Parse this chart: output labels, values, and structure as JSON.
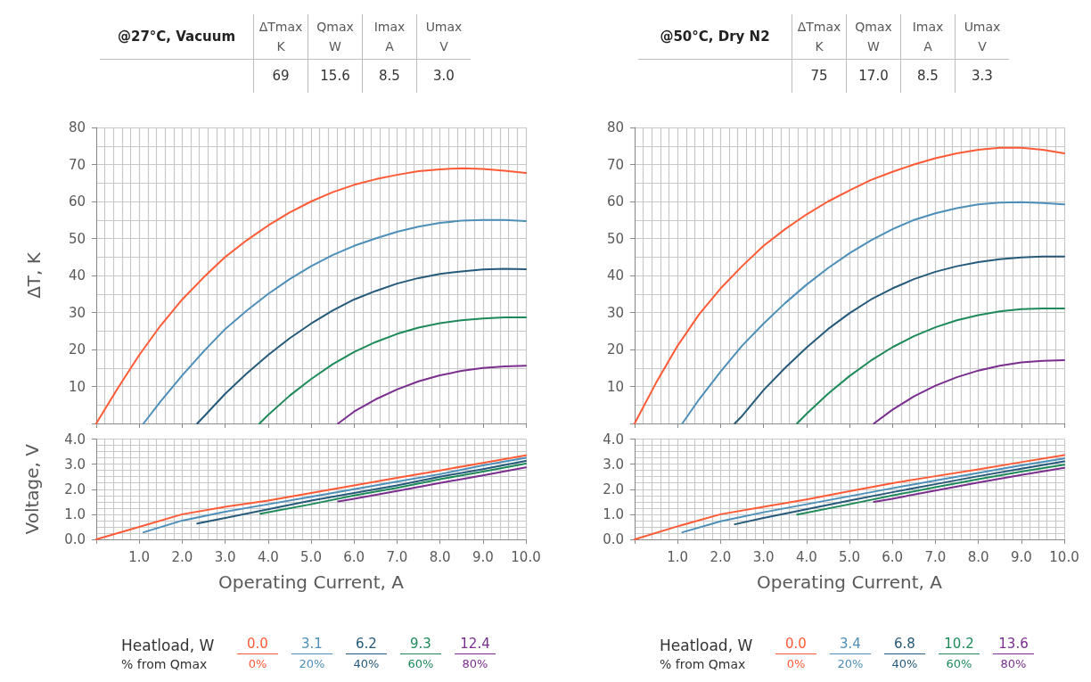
{
  "chart_data": [
    {
      "type": "other",
      "title": "@27°C, Vacuum",
      "categories": [
        "ΔTmax\nK",
        "Qmax\nW",
        "Imax\nA",
        "Umax\nV"
      ],
      "values": [
        69,
        15.6,
        8.5,
        3.0
      ],
      "value_labels": [
        "69",
        "15.6",
        "8.5",
        "3.0"
      ]
    },
    {
      "type": "line",
      "ylabel": "ΔT, K",
      "xlim": [
        0,
        10
      ],
      "xticks": [
        0,
        1,
        2,
        3,
        4,
        5,
        6,
        7,
        8,
        9,
        10
      ],
      "ylim": [
        0,
        80
      ],
      "yticks": [
        {
          "value": 0,
          "label": null
        },
        10,
        20,
        30,
        40,
        50,
        60,
        70,
        80
      ],
      "tick_labels": "y",
      "grid": true,
      "marker": "none",
      "series": [
        {
          "color": "#ff5a36",
          "x": [
            0,
            0.5,
            1,
            1.5,
            2,
            2.5,
            3,
            3.5,
            4,
            4.5,
            5,
            5.5,
            6,
            6.5,
            7,
            7.5,
            8,
            8.5,
            9,
            9.5,
            10
          ],
          "values": [
            0,
            9.5,
            18.5,
            26.5,
            33.5,
            39.5,
            45,
            49.5,
            53.5,
            57,
            60,
            62.5,
            64.5,
            66,
            67.2,
            68.2,
            68.7,
            69,
            68.8,
            68.3,
            67.7
          ]
        },
        {
          "color": "#4d8fb8",
          "x": [
            1.1,
            1.5,
            2,
            2.5,
            3,
            3.5,
            4,
            4.5,
            5,
            5.5,
            6,
            6.5,
            7,
            7.5,
            8,
            8.5,
            9,
            9.5,
            10
          ],
          "values": [
            0,
            6,
            13,
            19.5,
            25.5,
            30.5,
            35,
            39,
            42.5,
            45.5,
            48,
            50,
            51.8,
            53.2,
            54.2,
            54.8,
            55,
            55,
            54.7
          ]
        },
        {
          "color": "#255a7a",
          "x": [
            2.35,
            2.5,
            3,
            3.5,
            4,
            4.5,
            5,
            5.5,
            6,
            6.5,
            7,
            7.5,
            8,
            8.5,
            9,
            9.5,
            10
          ],
          "values": [
            0,
            1.8,
            8,
            13.5,
            18.5,
            23,
            27,
            30.5,
            33.5,
            35.8,
            37.8,
            39.3,
            40.4,
            41.1,
            41.6,
            41.8,
            41.7
          ]
        },
        {
          "color": "#1e8a5a",
          "x": [
            3.8,
            4,
            4.5,
            5,
            5.5,
            6,
            6.5,
            7,
            7.5,
            8,
            8.5,
            9,
            9.5,
            10
          ],
          "values": [
            0,
            2.3,
            7.5,
            12,
            16,
            19.3,
            22,
            24.2,
            25.9,
            27.1,
            27.9,
            28.4,
            28.7,
            28.7
          ]
        },
        {
          "color": "#7a2e8e",
          "x": [
            5.63,
            6,
            6.5,
            7,
            7.5,
            8,
            8.5,
            9,
            9.5,
            10
          ],
          "values": [
            0,
            3.2,
            6.5,
            9.2,
            11.4,
            13,
            14.2,
            15,
            15.4,
            15.6
          ]
        }
      ]
    },
    {
      "type": "line",
      "ylabel": "Voltage, V",
      "xlabel": "Operating Current, A",
      "xlim": [
        0,
        10
      ],
      "xticks": [
        {
          "value": 0,
          "label": null
        },
        {
          "value": 1,
          "label": "1.0"
        },
        {
          "value": 2,
          "label": "2.0"
        },
        {
          "value": 3,
          "label": "3.0"
        },
        {
          "value": 4,
          "label": "4.0"
        },
        {
          "value": 5,
          "label": "5.0"
        },
        {
          "value": 6,
          "label": "6.0"
        },
        {
          "value": 7,
          "label": "7.0"
        },
        {
          "value": 8,
          "label": "8.0"
        },
        {
          "value": 9,
          "label": "9.0"
        },
        {
          "value": 10,
          "label": "10.0"
        }
      ],
      "ylim": [
        0,
        4
      ],
      "yticks": [
        {
          "value": 0,
          "label": "0.0"
        },
        {
          "value": 1,
          "label": "1.0"
        },
        {
          "value": 2,
          "label": "2.0"
        },
        {
          "value": 3,
          "label": "3.0"
        },
        {
          "value": 4,
          "label": "4.0"
        }
      ],
      "grid": true,
      "marker": "none",
      "legend": "bottom",
      "legend_title": "Heatload, W",
      "annotations": [
        "% from Qmax",
        "0%",
        "20%",
        "40%",
        "60%",
        "80%"
      ],
      "series": [
        {
          "name": "0.0",
          "color": "#ff5a36",
          "x": [
            0,
            1,
            2,
            3,
            4,
            5,
            6,
            7,
            8,
            9,
            10
          ],
          "values": [
            0,
            0.5,
            1.0,
            1.3,
            1.55,
            1.85,
            2.15,
            2.45,
            2.75,
            3.05,
            3.35
          ]
        },
        {
          "name": "3.1",
          "color": "#4d8fb8",
          "x": [
            1.1,
            2,
            3,
            4,
            5,
            6,
            7,
            8,
            9,
            10
          ],
          "values": [
            0.28,
            0.75,
            1.1,
            1.4,
            1.7,
            2.0,
            2.3,
            2.6,
            2.95,
            3.25
          ]
        },
        {
          "name": "6.2",
          "color": "#255a7a",
          "x": [
            2.35,
            3,
            4,
            5,
            6,
            7,
            8,
            9,
            10
          ],
          "values": [
            0.63,
            0.85,
            1.2,
            1.55,
            1.85,
            2.15,
            2.5,
            2.8,
            3.13
          ]
        },
        {
          "name": "9.3",
          "color": "#1e8a5a",
          "x": [
            3.82,
            5,
            6,
            7,
            8,
            9,
            10
          ],
          "values": [
            1.02,
            1.4,
            1.75,
            2.05,
            2.4,
            2.7,
            3.02
          ]
        },
        {
          "name": "12.4",
          "color": "#7a2e8e",
          "x": [
            5.63,
            6,
            7,
            8,
            9,
            10
          ],
          "values": [
            1.51,
            1.62,
            1.93,
            2.25,
            2.55,
            2.87
          ]
        }
      ]
    },
    {
      "type": "other",
      "title": "@50°C, Dry N2",
      "categories": [
        "ΔTmax\nK",
        "Qmax\nW",
        "Imax\nA",
        "Umax\nV"
      ],
      "values": [
        75,
        17.0,
        8.5,
        3.3
      ],
      "value_labels": [
        "75",
        "17.0",
        "8.5",
        "3.3"
      ]
    },
    {
      "type": "line",
      "xlim": [
        0,
        10
      ],
      "xticks": [
        0,
        1,
        2,
        3,
        4,
        5,
        6,
        7,
        8,
        9,
        10
      ],
      "ylim": [
        0,
        80
      ],
      "yticks": [
        {
          "value": 0,
          "label": null
        },
        10,
        20,
        30,
        40,
        50,
        60,
        70,
        80
      ],
      "tick_labels": "y",
      "grid": true,
      "marker": "none",
      "series": [
        {
          "color": "#ff5a36",
          "x": [
            0,
            0.5,
            1,
            1.5,
            2,
            2.5,
            3,
            3.5,
            4,
            4.5,
            5,
            5.5,
            6,
            6.5,
            7,
            7.5,
            8,
            8.5,
            9,
            9.5,
            10
          ],
          "values": [
            0,
            11,
            21,
            29.5,
            36.5,
            42.5,
            48,
            52.5,
            56.5,
            60,
            63,
            65.8,
            68,
            70,
            71.7,
            73,
            74,
            74.5,
            74.5,
            74,
            73
          ]
        },
        {
          "color": "#4d8fb8",
          "x": [
            1.11,
            1.5,
            2,
            2.5,
            3,
            3.5,
            4,
            4.5,
            5,
            5.5,
            6,
            6.5,
            7,
            7.5,
            8,
            8.5,
            9,
            9.5,
            10
          ],
          "values": [
            0,
            6.5,
            14,
            21,
            27,
            32.5,
            37.5,
            42,
            46,
            49.5,
            52.5,
            55,
            56.8,
            58.2,
            59.2,
            59.7,
            59.8,
            59.6,
            59.2
          ]
        },
        {
          "color": "#255a7a",
          "x": [
            2.33,
            2.5,
            3,
            3.5,
            4,
            4.5,
            5,
            5.5,
            6,
            6.5,
            7,
            7.5,
            8,
            8.5,
            9,
            9.5,
            10
          ],
          "values": [
            0,
            2,
            9,
            15,
            20.5,
            25.5,
            29.8,
            33.5,
            36.5,
            39,
            41,
            42.5,
            43.6,
            44.4,
            44.9,
            45.1,
            45.1
          ]
        },
        {
          "color": "#1e8a5a",
          "x": [
            3.78,
            4,
            4.5,
            5,
            5.5,
            6,
            6.5,
            7,
            7.5,
            8,
            8.5,
            9,
            9.5,
            10
          ],
          "values": [
            0,
            2.6,
            8,
            12.8,
            17,
            20.6,
            23.6,
            26,
            27.9,
            29.3,
            30.3,
            30.9,
            31.1,
            31.1
          ]
        },
        {
          "color": "#7a2e8e",
          "x": [
            5.57,
            6,
            6.5,
            7,
            7.5,
            8,
            8.5,
            9,
            9.5,
            10
          ],
          "values": [
            0,
            3.7,
            7.3,
            10.2,
            12.5,
            14.3,
            15.6,
            16.5,
            16.9,
            17.1
          ]
        }
      ]
    },
    {
      "type": "line",
      "xlabel": "Operating Current, A",
      "xlim": [
        0,
        10
      ],
      "xticks": [
        {
          "value": 0,
          "label": null
        },
        {
          "value": 1,
          "label": "1.0"
        },
        {
          "value": 2,
          "label": "2.0"
        },
        {
          "value": 3,
          "label": "3.0"
        },
        {
          "value": 4,
          "label": "4.0"
        },
        {
          "value": 5,
          "label": "5.0"
        },
        {
          "value": 6,
          "label": "6.0"
        },
        {
          "value": 7,
          "label": "7.0"
        },
        {
          "value": 8,
          "label": "8.0"
        },
        {
          "value": 9,
          "label": "9.0"
        },
        {
          "value": 10,
          "label": "10.0"
        }
      ],
      "ylim": [
        0,
        4
      ],
      "yticks": [
        {
          "value": 0,
          "label": "0.0"
        },
        {
          "value": 1,
          "label": "1.0"
        },
        {
          "value": 2,
          "label": "2.0"
        },
        {
          "value": 3,
          "label": "3.0"
        },
        {
          "value": 4,
          "label": "4.0"
        }
      ],
      "grid": true,
      "marker": "none",
      "legend": "bottom",
      "legend_title": "Heatload, W",
      "annotations": [
        "% from Qmax",
        "0%",
        "20%",
        "40%",
        "60%",
        "80%"
      ],
      "series": [
        {
          "name": "0.0",
          "color": "#ff5a36",
          "x": [
            0,
            1,
            2,
            3,
            4,
            5,
            6,
            7,
            8,
            9,
            10
          ],
          "values": [
            0,
            0.52,
            1.0,
            1.3,
            1.59,
            1.92,
            2.24,
            2.52,
            2.79,
            3.08,
            3.36
          ]
        },
        {
          "name": "3.4",
          "color": "#4d8fb8",
          "x": [
            1.11,
            2,
            3,
            4,
            5,
            6,
            7,
            8,
            9,
            10
          ],
          "values": [
            0.28,
            0.72,
            1.08,
            1.4,
            1.72,
            2.04,
            2.35,
            2.65,
            2.95,
            3.23
          ]
        },
        {
          "name": "6.8",
          "color": "#255a7a",
          "x": [
            2.33,
            3,
            4,
            5,
            6,
            7,
            8,
            9,
            10
          ],
          "values": [
            0.6,
            0.85,
            1.2,
            1.55,
            1.88,
            2.2,
            2.52,
            2.82,
            3.11
          ]
        },
        {
          "name": "10.2",
          "color": "#1e8a5a",
          "x": [
            3.78,
            5,
            6,
            7,
            8,
            9,
            10
          ],
          "values": [
            0.99,
            1.4,
            1.75,
            2.08,
            2.4,
            2.7,
            2.98
          ]
        },
        {
          "name": "13.6",
          "color": "#7a2e8e",
          "x": [
            5.57,
            6,
            7,
            8,
            9,
            10
          ],
          "values": [
            1.49,
            1.62,
            1.95,
            2.27,
            2.57,
            2.85
          ]
        }
      ]
    }
  ]
}
